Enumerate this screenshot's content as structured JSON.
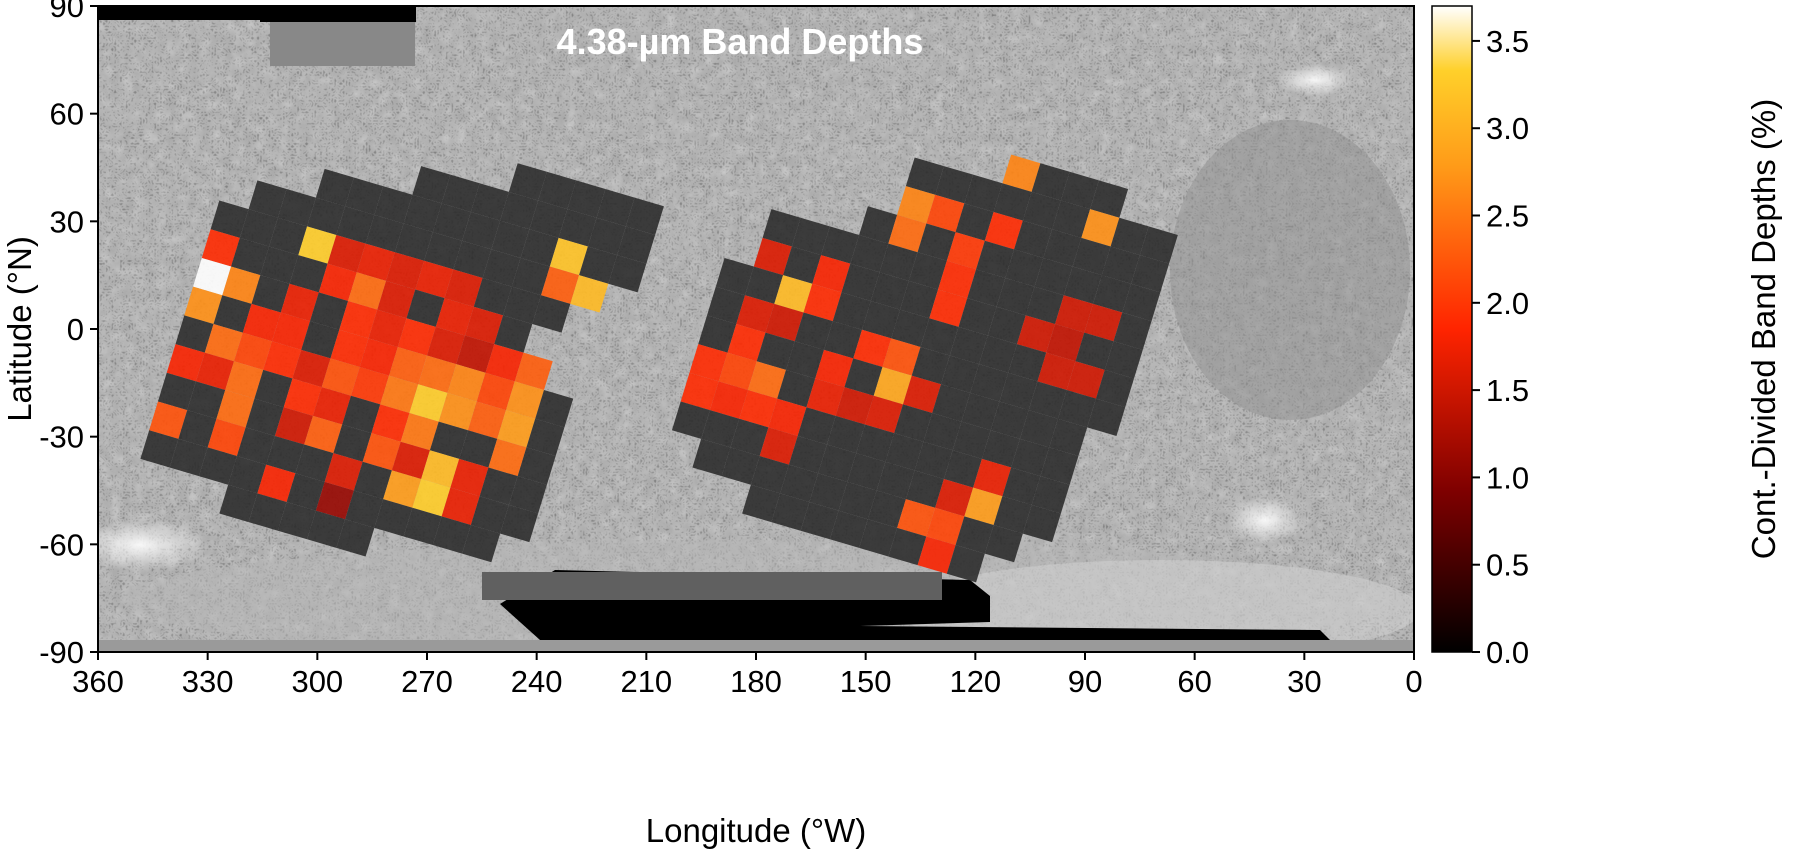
{
  "title": "4.38-µm Band Depths",
  "x_axis": {
    "label": "Longitude (°W)",
    "ticks": [
      "360",
      "330",
      "300",
      "270",
      "240",
      "210",
      "180",
      "150",
      "120",
      "90",
      "60",
      "30",
      "0"
    ],
    "range": [
      360,
      0
    ]
  },
  "y_axis": {
    "label": "Latitude (°N)",
    "ticks": [
      "90",
      "60",
      "30",
      "0",
      "-30",
      "-60",
      "-90"
    ],
    "range": [
      -90,
      90
    ]
  },
  "colorbar": {
    "label": "Cont.-Divided Band Depths (%)",
    "ticks": [
      "0.0",
      "0.5",
      "1.0",
      "1.5",
      "2.0",
      "2.5",
      "3.0",
      "3.5"
    ],
    "range": [
      0,
      3.7
    ],
    "colormap": "afmhot"
  },
  "colors": {
    "basemap_gray": "#7a7a7a",
    "nodata_black": "#000000"
  },
  "chart_data": {
    "type": "heatmap",
    "title": "4.38-µm Band Depths",
    "xlabel": "Longitude (°W)",
    "ylabel": "Latitude (°N)",
    "colorbar_label": "Cont.-Divided Band Depths (%)",
    "xlim": [
      360,
      0
    ],
    "ylim": [
      -90,
      90
    ],
    "clim": [
      0,
      3.7
    ],
    "regions": [
      {
        "name": "western",
        "origin_lon": 278,
        "origin_lat": -5,
        "cell_deg": 8,
        "tilt": 0.3,
        "grid": [
          [
            null,
            null,
            null,
            null,
            null,
            null,
            null,
            null,
            null,
            0.0,
            0.0,
            0.0,
            0.0,
            0.0
          ],
          [
            null,
            null,
            null,
            null,
            null,
            null,
            0.0,
            0.0,
            0.0,
            0.0,
            0.0,
            0.0,
            0.0,
            0.0
          ],
          [
            null,
            null,
            null,
            0.0,
            0.0,
            0.0,
            0.0,
            0.0,
            0.0,
            0.0,
            0.0,
            3.2,
            0.0,
            0.0
          ],
          [
            null,
            0.0,
            0.0,
            0.0,
            0.0,
            0.0,
            0.0,
            0.0,
            0.0,
            0.0,
            0.0,
            2.3,
            3.1,
            null
          ],
          [
            0.0,
            0.0,
            0.0,
            3.3,
            1.6,
            1.7,
            1.6,
            1.7,
            1.6,
            0.0,
            0.0,
            0.0,
            null,
            null
          ],
          [
            1.9,
            0.0,
            0.0,
            0.0,
            1.8,
            2.4,
            1.6,
            0.0,
            1.7,
            1.6,
            0.0,
            null,
            null,
            null
          ],
          [
            3.7,
            2.6,
            0.0,
            1.7,
            0.0,
            1.9,
            1.7,
            1.9,
            1.6,
            1.4,
            1.8,
            2.3,
            null,
            null
          ],
          [
            2.7,
            0.0,
            1.8,
            1.8,
            0.0,
            1.9,
            1.8,
            2.3,
            2.4,
            2.6,
            2.1,
            2.7,
            0.0,
            null
          ],
          [
            0.0,
            2.4,
            2.1,
            1.9,
            1.6,
            2.2,
            2.0,
            2.5,
            3.3,
            2.7,
            2.3,
            2.8,
            0.0,
            null
          ],
          [
            1.8,
            1.7,
            2.4,
            0.0,
            1.9,
            1.7,
            0.0,
            1.9,
            2.5,
            0.0,
            0.0,
            2.4,
            0.0,
            null
          ],
          [
            0.0,
            0.0,
            2.4,
            0.0,
            1.5,
            2.3,
            0.0,
            2.2,
            1.6,
            3.1,
            1.7,
            0.0,
            0.0,
            null
          ],
          [
            2.2,
            0.0,
            2.1,
            0.0,
            0.0,
            0.0,
            1.6,
            0.0,
            2.8,
            3.3,
            1.7,
            0.0,
            0.0,
            null
          ],
          [
            0.0,
            0.0,
            0.0,
            0.0,
            1.8,
            0.0,
            1.1,
            0.0,
            0.0,
            0.0,
            0.0,
            0.0,
            null,
            null
          ],
          [
            null,
            null,
            null,
            0.0,
            0.0,
            0.0,
            0.0,
            0.0,
            null,
            null,
            null,
            null,
            null,
            null
          ]
        ]
      },
      {
        "name": "eastern",
        "origin_lon": 135,
        "origin_lat": -5,
        "cell_deg": 8,
        "tilt": 0.3,
        "grid": [
          [
            null,
            null,
            null,
            null,
            null,
            null,
            null,
            null,
            2.6,
            0.0,
            0.0,
            0.0,
            null,
            null
          ],
          [
            null,
            null,
            null,
            null,
            null,
            0.0,
            0.0,
            0.0,
            0.0,
            0.0,
            0.0,
            2.7,
            0.0,
            0.0
          ],
          [
            null,
            null,
            null,
            null,
            null,
            2.6,
            2.1,
            0.0,
            1.9,
            0.0,
            0.0,
            0.0,
            0.0,
            0.0
          ],
          [
            null,
            null,
            null,
            null,
            0.0,
            2.4,
            0.0,
            2.0,
            0.0,
            0.0,
            0.0,
            0.0,
            0.0,
            0.0
          ],
          [
            null,
            0.0,
            0.0,
            0.0,
            0.0,
            0.0,
            0.0,
            1.9,
            0.0,
            0.0,
            0.0,
            1.5,
            1.5,
            0.0
          ],
          [
            null,
            1.6,
            0.0,
            1.8,
            0.0,
            0.0,
            0.0,
            1.9,
            0.0,
            0.0,
            1.5,
            1.4,
            0.0,
            0.0
          ],
          [
            0.0,
            0.0,
            3.1,
            1.9,
            0.0,
            0.0,
            0.0,
            0.0,
            0.0,
            0.0,
            0.0,
            1.5,
            1.5,
            0.0
          ],
          [
            0.0,
            1.6,
            1.5,
            0.0,
            0.0,
            1.9,
            2.2,
            0.0,
            0.0,
            0.0,
            0.0,
            0.0,
            0.0,
            0.0
          ],
          [
            0.0,
            1.9,
            0.0,
            0.0,
            1.8,
            0.0,
            2.9,
            1.6,
            0.0,
            0.0,
            0.0,
            0.0,
            0.0,
            null
          ],
          [
            1.9,
            2.1,
            2.4,
            0.0,
            1.7,
            1.5,
            1.6,
            0.0,
            0.0,
            0.0,
            0.0,
            0.0,
            0.0,
            null
          ],
          [
            1.9,
            1.8,
            1.9,
            1.8,
            0.0,
            0.0,
            0.0,
            0.0,
            0.0,
            0.0,
            1.7,
            0.0,
            0.0,
            null
          ],
          [
            0.0,
            0.0,
            0.0,
            1.6,
            0.0,
            0.0,
            0.0,
            0.0,
            0.0,
            1.6,
            2.8,
            0.0,
            0.0,
            null
          ],
          [
            null,
            0.0,
            0.0,
            0.0,
            0.0,
            0.0,
            0.0,
            0.0,
            2.2,
            2.1,
            0.0,
            0.0,
            null,
            null
          ],
          [
            null,
            null,
            null,
            0.0,
            0.0,
            0.0,
            0.0,
            0.0,
            0.0,
            1.8,
            0.0,
            null,
            null,
            null
          ]
        ]
      }
    ]
  }
}
